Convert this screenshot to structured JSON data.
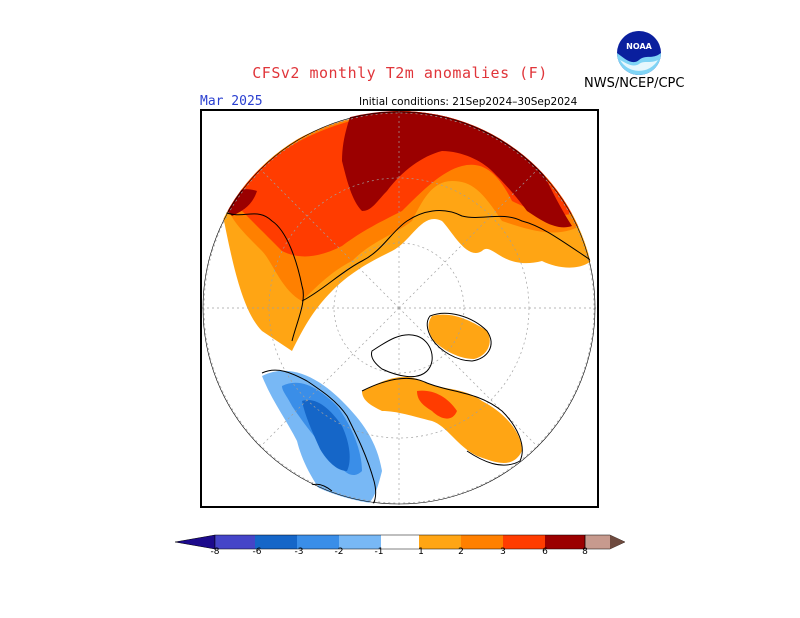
{
  "header": {
    "title": "CFSv2 monthly T2m anomalies (F)",
    "agency": "NWS/NCEP/CPC",
    "logo_text": "NOAA",
    "valid_month": "Mar 2025",
    "initial_conditions": "Initial conditions: 21Sep2024–30Sep2024"
  },
  "map": {
    "projection": "polar stereographic (North Pole)",
    "variable": "T2m anomaly",
    "units": "F"
  },
  "legend": {
    "ticks": [
      "-8",
      "-6",
      "-3",
      "-2",
      "-1",
      "1",
      "2",
      "3",
      "6",
      "8"
    ],
    "colors": {
      "lt_-8": "#1c0a8c",
      "-8_-6": "#4545c8",
      "-6_-3": "#1566c8",
      "-3_-2": "#3a8ee8",
      "-2_-1": "#78b8f5",
      "-1_1": "#ffffff",
      "1_2": "#ffa514",
      "2_3": "#ff8000",
      "3_6": "#ff3c00",
      "6_8": "#9b0000",
      "gt_8": "#c79a8e",
      "extreme": "#6e4a3e"
    }
  }
}
